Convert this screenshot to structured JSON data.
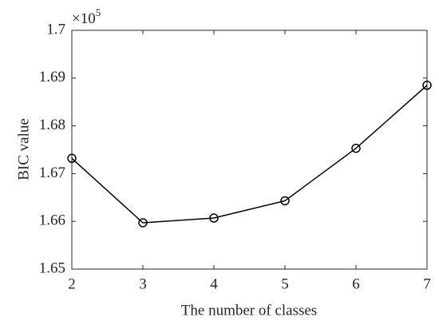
{
  "chart_data": {
    "type": "line",
    "x_label": "The number of classes",
    "y_label": "BIC value",
    "y_multiplier": {
      "base": "×10",
      "exponent": "5"
    },
    "x": [
      2,
      3,
      4,
      5,
      6,
      7
    ],
    "series": [
      {
        "name": "BIC",
        "color": "#000000",
        "values": [
          1.6732,
          1.6597,
          1.6607,
          1.6643,
          1.6753,
          1.6885
        ]
      }
    ],
    "xlim": [
      2,
      7
    ],
    "xticks": [
      2,
      3,
      4,
      5,
      6,
      7
    ],
    "ylim": [
      1.65,
      1.7
    ],
    "yticks": [
      1.65,
      1.66,
      1.67,
      1.68,
      1.69,
      1.7
    ],
    "marker": "circle",
    "grid": false
  }
}
